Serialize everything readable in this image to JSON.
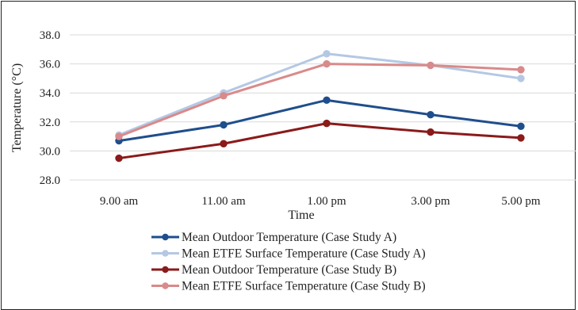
{
  "chart_data": {
    "type": "line",
    "categories": [
      "9.00 am",
      "11.00 am",
      "1.00 pm",
      "3.00 pm",
      "5.00 pm"
    ],
    "xlabel": "Time",
    "ylabel": "Temperature (°C)",
    "ylim": [
      28.0,
      38.0
    ],
    "yticks": [
      "28.0",
      "30.0",
      "32.0",
      "34.0",
      "36.0",
      "38.0"
    ],
    "grid": true,
    "legend": "bottom",
    "series": [
      {
        "name": "Mean Outdoor Temperature (Case Study A)",
        "color": "#1f4e8c",
        "values": [
          30.7,
          31.8,
          33.5,
          32.5,
          31.7
        ]
      },
      {
        "name": "Mean ETFE Surface Temperature (Case Study A)",
        "color": "#b4c8e4",
        "values": [
          31.1,
          34.0,
          36.7,
          35.9,
          35.0
        ]
      },
      {
        "name": "Mean Outdoor Temperature (Case Study B)",
        "color": "#8b1a1a",
        "values": [
          29.5,
          30.5,
          31.9,
          31.3,
          30.9
        ]
      },
      {
        "name": "Mean ETFE Surface Temperature (Case Study B)",
        "color": "#d98a8a",
        "values": [
          31.0,
          33.8,
          36.0,
          35.9,
          35.6
        ]
      }
    ]
  }
}
